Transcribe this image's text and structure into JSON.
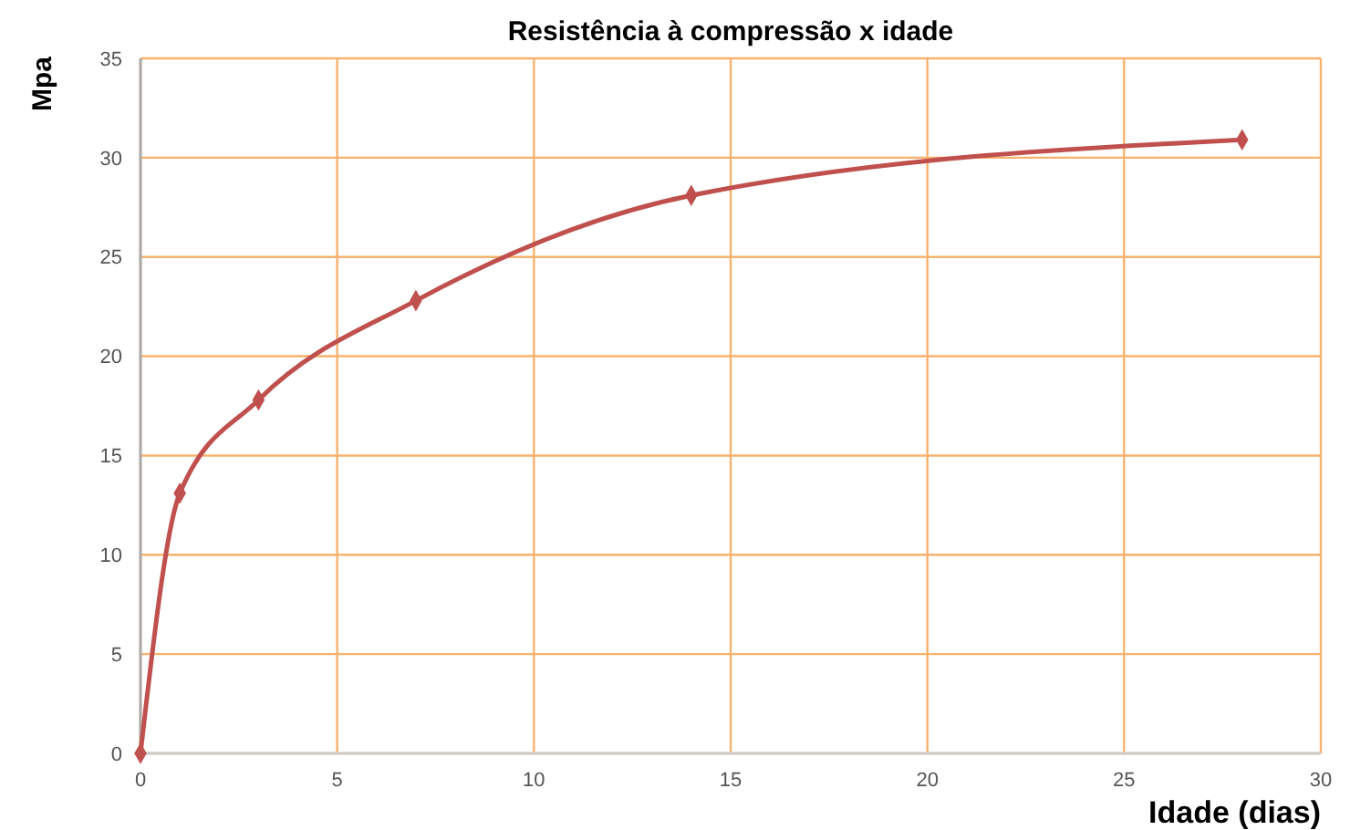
{
  "chart_data": {
    "type": "line",
    "title": "Resistência à compressão x idade",
    "xlabel": "Idade (dias)",
    "ylabel": "Mpa",
    "x": [
      0,
      1,
      3,
      7,
      14,
      28
    ],
    "series": [
      {
        "color": "#c0504d",
        "values": [
          0,
          13.1,
          17.8,
          22.8,
          28.1,
          30.9
        ]
      }
    ],
    "xlim": [
      0,
      30
    ],
    "xticks": [
      0,
      5,
      10,
      15,
      20,
      25,
      30
    ],
    "ylim": [
      0,
      35
    ],
    "yticks": [
      0,
      5,
      10,
      15,
      20,
      25,
      30,
      35
    ],
    "grid": true,
    "marker": "diamond",
    "line_style": "solid"
  }
}
